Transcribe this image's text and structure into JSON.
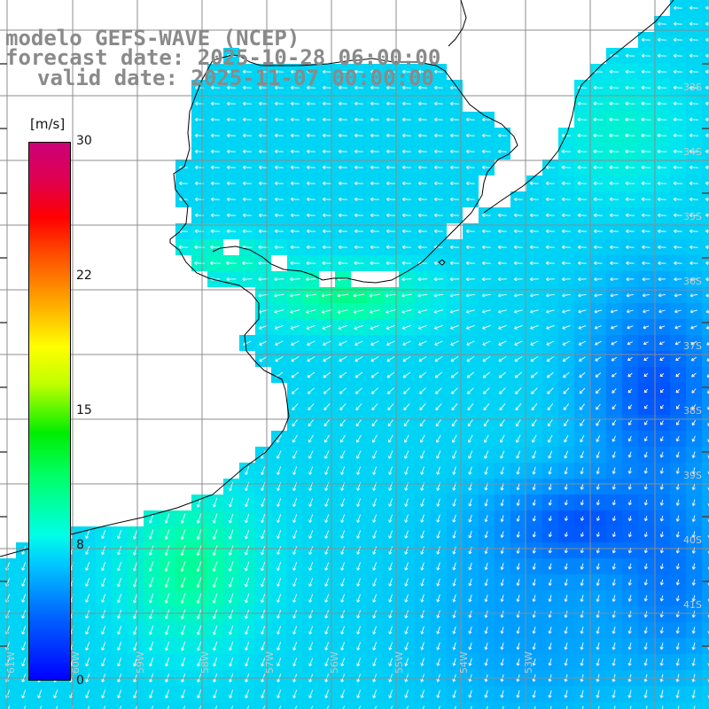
{
  "header": {
    "line1": "modelo GEFS-WAVE (NCEP)",
    "line2": "forecast date: 2025-10-28 06:00:00",
    "line3": "valid date: 2025-11-07 00:00:00"
  },
  "colorbar": {
    "unit": "[m/s]",
    "ticks": [
      "30",
      "22",
      "15",
      "8",
      "0"
    ],
    "range": [
      0,
      30
    ]
  },
  "lat_labels": [
    "33S",
    "34S",
    "35S",
    "36S",
    "37S",
    "38S",
    "39S",
    "40S",
    "41S"
  ],
  "lon_labels": [
    "61W",
    "60W",
    "59W",
    "58W",
    "57W",
    "56W",
    "55W",
    "54W",
    "53W"
  ],
  "colors": {
    "land": "#ffffff",
    "grid": "#8c8c8c",
    "coast": "#000000",
    "arrow": "#ffffff",
    "header_text": "#8a8a8a"
  }
}
